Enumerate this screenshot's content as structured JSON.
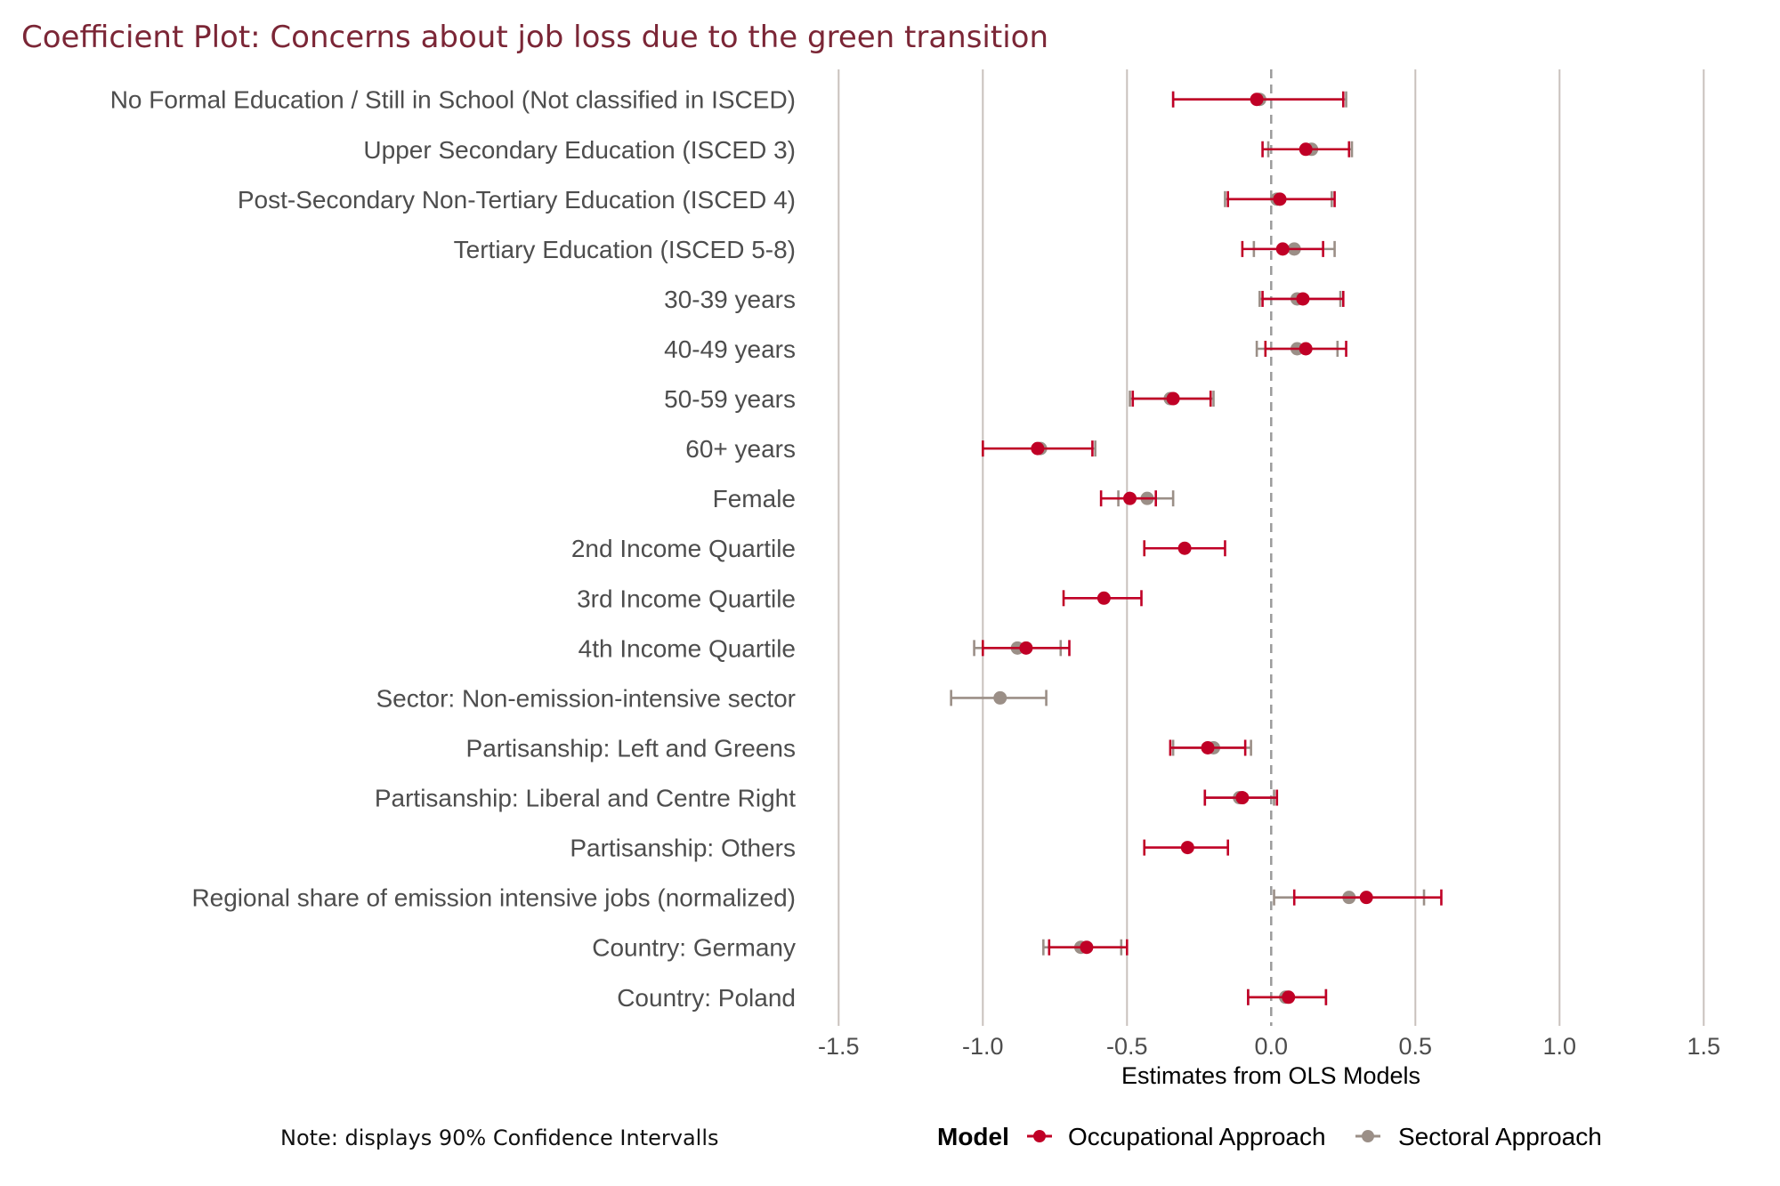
{
  "chart_data": {
    "type": "scatter",
    "subtype": "coefficient-plot",
    "title": "Coefficient Plot: Concerns about job loss due to the green transition",
    "xlabel": "Estimates from OLS Models",
    "ylabel": "",
    "xlim": [
      -1.5,
      1.5
    ],
    "xticks": [
      -1.5,
      -1.0,
      -0.5,
      0.0,
      0.5,
      1.0,
      1.5
    ],
    "xtick_labels": [
      "-1.5",
      "-1.0",
      "-0.5",
      "0.0",
      "0.5",
      "1.0",
      "1.5"
    ],
    "reference_line": 0,
    "grid": "vertical major",
    "note": "Note: displays 90% Confidence Intervalls",
    "legend": {
      "title": "Model",
      "placement": "bottom",
      "entries": [
        {
          "name": "Occupational Approach",
          "color": "#c00026"
        },
        {
          "name": "Sectoral Approach",
          "color": "#9b8f87"
        }
      ]
    },
    "categories": [
      "No Formal Education / Still in School (Not classified in ISCED)",
      "Upper Secondary Education (ISCED 3)",
      "Post-Secondary Non-Tertiary Education (ISCED 4)",
      "Tertiary Education (ISCED 5-8)",
      "30-39 years",
      "40-49 years",
      "50-59 years",
      "60+ years",
      "Female",
      "2nd Income Quartile",
      "3rd Income Quartile",
      "4th Income Quartile",
      "Sector: Non-emission-intensive sector",
      "Partisanship: Left and Greens",
      "Partisanship: Liberal and Centre Right",
      "Partisanship: Others",
      "Regional share of emission intensive jobs (normalized)",
      "Country: Germany",
      "Country: Poland"
    ],
    "series": [
      {
        "name": "Sectoral Approach",
        "color": "#9b8f87",
        "estimates": [
          -0.04,
          0.14,
          0.02,
          0.08,
          0.09,
          0.09,
          -0.35,
          -0.8,
          -0.43,
          null,
          null,
          -0.88,
          -0.94,
          -0.2,
          -0.11,
          null,
          0.27,
          -0.66,
          0.05
        ],
        "ci_low": [
          -0.34,
          -0.01,
          -0.16,
          -0.06,
          -0.04,
          -0.05,
          -0.49,
          -1.0,
          -0.53,
          null,
          null,
          -1.03,
          -1.11,
          -0.34,
          -0.23,
          null,
          0.01,
          -0.79,
          -0.08
        ],
        "ci_high": [
          0.26,
          0.28,
          0.21,
          0.22,
          0.24,
          0.23,
          -0.2,
          -0.61,
          -0.34,
          null,
          null,
          -0.73,
          -0.78,
          -0.07,
          0.01,
          null,
          0.53,
          -0.52,
          0.19
        ]
      },
      {
        "name": "Occupational Approach",
        "color": "#c00026",
        "estimates": [
          -0.05,
          0.12,
          0.03,
          0.04,
          0.11,
          0.12,
          -0.34,
          -0.81,
          -0.49,
          -0.3,
          -0.58,
          -0.85,
          null,
          -0.22,
          -0.1,
          -0.29,
          0.33,
          -0.64,
          0.06
        ],
        "ci_low": [
          -0.34,
          -0.03,
          -0.15,
          -0.1,
          -0.03,
          -0.02,
          -0.48,
          -1.0,
          -0.59,
          -0.44,
          -0.72,
          -1.0,
          null,
          -0.35,
          -0.23,
          -0.44,
          0.08,
          -0.77,
          -0.08
        ],
        "ci_high": [
          0.25,
          0.27,
          0.22,
          0.18,
          0.25,
          0.26,
          -0.21,
          -0.62,
          -0.4,
          -0.16,
          -0.45,
          -0.7,
          null,
          -0.09,
          0.02,
          -0.15,
          0.59,
          -0.5,
          0.19
        ]
      }
    ]
  }
}
